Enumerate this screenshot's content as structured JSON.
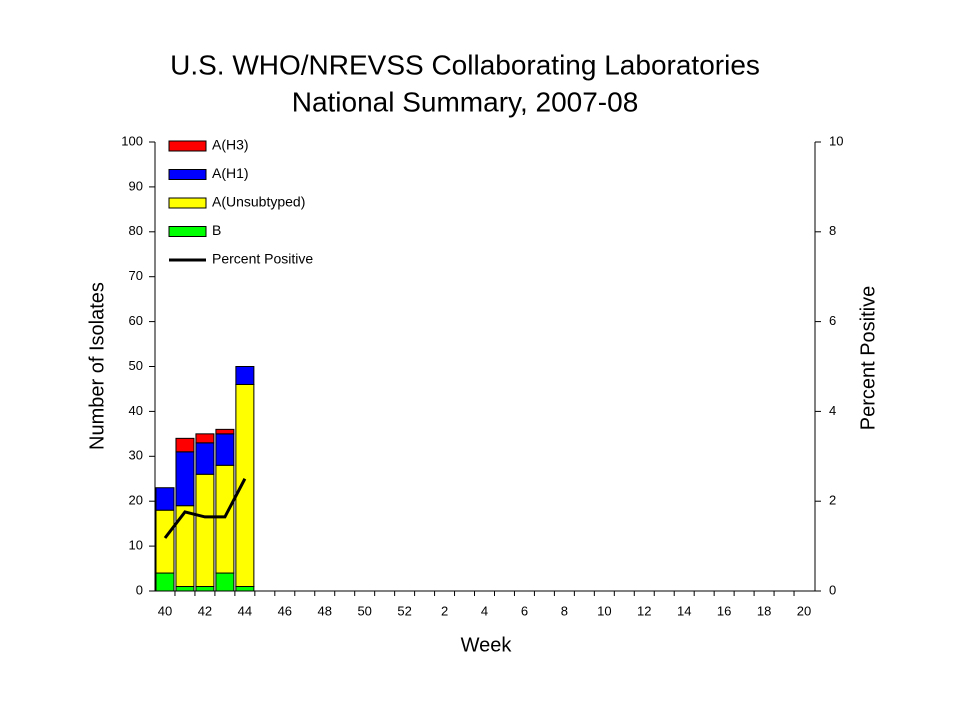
{
  "chart_data": {
    "type": "bar",
    "title": [
      "U.S. WHO/NREVSS Collaborating Laboratories",
      "National Summary, 2007-08"
    ],
    "x_label": "Week",
    "y_label": "Number of Isolates",
    "y2_label": "Percent Positive",
    "stacked": true,
    "grid": false,
    "legend": "upper left",
    "categories": [
      40,
      null,
      42,
      null,
      44,
      null,
      46,
      null,
      48,
      null,
      50,
      null,
      52,
      null,
      2,
      null,
      4,
      null,
      6,
      null,
      8,
      null,
      10,
      null,
      12,
      null,
      14,
      null,
      16,
      null,
      18,
      null,
      20
    ],
    "series": [
      {
        "name": "A(H3)",
        "color": "#ff0000",
        "values": [
          0,
          3,
          2,
          1,
          0,
          null,
          null,
          null,
          null,
          null,
          null,
          null,
          null,
          null,
          null,
          null,
          null,
          null,
          null,
          null,
          null,
          null,
          null,
          null,
          null,
          null,
          null,
          null,
          null,
          null,
          null,
          null,
          null
        ]
      },
      {
        "name": "A(H1)",
        "color": "#0000ff",
        "values": [
          5,
          12,
          7,
          7,
          4,
          null,
          null,
          null,
          null,
          null,
          null,
          null,
          null,
          null,
          null,
          null,
          null,
          null,
          null,
          null,
          null,
          null,
          null,
          null,
          null,
          null,
          null,
          null,
          null,
          null,
          null,
          null,
          null
        ]
      },
      {
        "name": "A(Unsubtyped)",
        "color": "#ffff00",
        "values": [
          14,
          18,
          25,
          24,
          45,
          null,
          null,
          null,
          null,
          null,
          null,
          null,
          null,
          null,
          null,
          null,
          null,
          null,
          null,
          null,
          null,
          null,
          null,
          null,
          null,
          null,
          null,
          null,
          null,
          null,
          null,
          null,
          null
        ]
      },
      {
        "name": "B",
        "color": "#00ff00",
        "values": [
          4,
          1,
          1,
          4,
          1,
          null,
          null,
          null,
          null,
          null,
          null,
          null,
          null,
          null,
          null,
          null,
          null,
          null,
          null,
          null,
          null,
          null,
          null,
          null,
          null,
          null,
          null,
          null,
          null,
          null,
          null,
          null,
          null
        ]
      },
      {
        "name": "Percent Positive",
        "color": "#000000",
        "type": "line",
        "axis": "y2",
        "values": [
          1.18,
          1.76,
          1.65,
          1.65,
          2.5,
          null,
          null,
          null,
          null,
          null,
          null,
          null,
          null,
          null,
          null,
          null,
          null,
          null,
          null,
          null,
          null,
          null,
          null,
          null,
          null,
          null,
          null,
          null,
          null,
          null,
          null,
          null,
          null
        ]
      }
    ],
    "ylim": [
      0,
      100
    ],
    "yticks": [
      0,
      10,
      20,
      30,
      40,
      50,
      60,
      70,
      80,
      90,
      100
    ],
    "y2lim": [
      0,
      10
    ],
    "y2ticks": [
      0,
      2,
      4,
      6,
      8,
      10
    ]
  }
}
